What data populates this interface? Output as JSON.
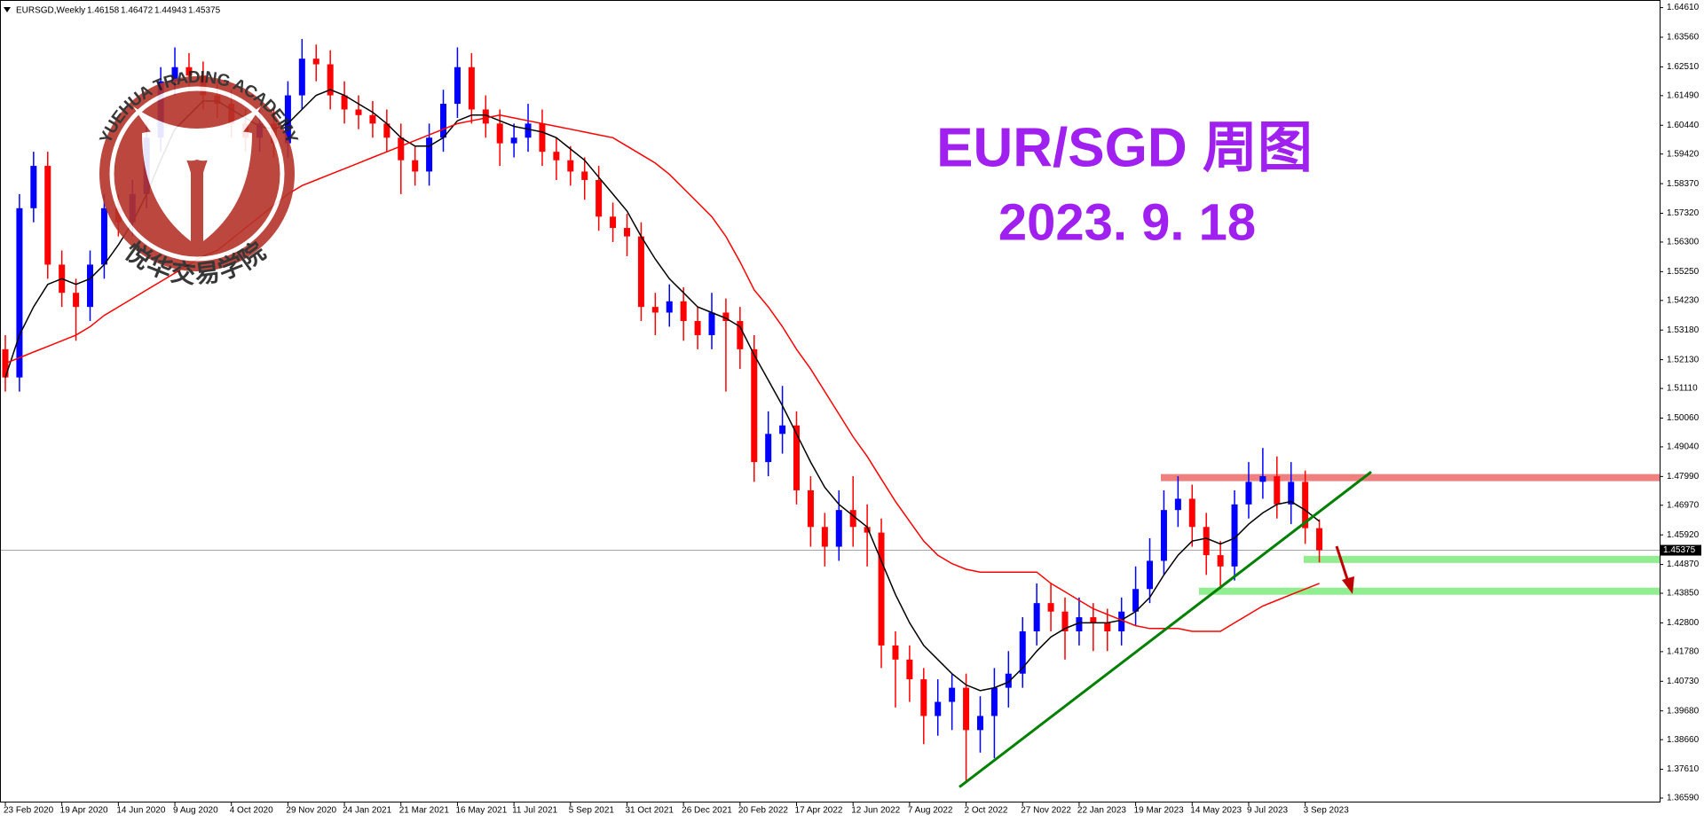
{
  "chart_data": {
    "type": "candlestick",
    "header": "EURSGD,Weekly",
    "title": "EUR/SGD 周图",
    "subtitle": "2023. 9. 18",
    "watermark": {
      "top": "YUEHUA TRADING ACADEMY",
      "bottom": "悦华交易学院"
    },
    "up_color": "#0000ff",
    "down_color": "#ff0000",
    "categories": [
      "23 Feb 2020",
      null,
      null,
      null,
      "19 Apr 2020",
      null,
      null,
      null,
      "14 Jun 2020",
      null,
      null,
      null,
      "9 Aug 2020",
      null,
      null,
      null,
      "4 Oct 2020",
      null,
      null,
      null,
      "29 Nov 2020",
      null,
      null,
      null,
      "24 Jan 2021",
      null,
      null,
      null,
      "21 Mar 2021",
      null,
      null,
      null,
      "16 May 2021",
      null,
      null,
      null,
      "11 Jul 2021",
      null,
      null,
      null,
      "5 Sep 2021",
      null,
      null,
      null,
      "31 Oct 2021",
      null,
      null,
      null,
      "26 Dec 2021",
      null,
      null,
      null,
      "20 Feb 2022",
      null,
      null,
      null,
      "17 Apr 2022",
      null,
      null,
      null,
      "12 Jun 2022",
      null,
      null,
      null,
      "7 Aug 2022",
      null,
      null,
      null,
      "2 Oct 2022",
      null,
      null,
      null,
      "27 Nov 2022",
      null,
      null,
      null,
      "22 Jan 2023",
      null,
      null,
      null,
      "19 Mar 2023",
      null,
      null,
      null,
      "14 May 2023",
      null,
      null,
      null,
      "9 Jul 2023",
      null,
      null,
      null,
      "3 Sep 2023",
      null
    ],
    "open": [
      1.525,
      1.515,
      1.575,
      1.59,
      1.555,
      1.545,
      1.54,
      1.555,
      1.575,
      1.57,
      1.58,
      1.6,
      1.62,
      1.625,
      1.622,
      1.615,
      1.612,
      1.605,
      1.6,
      1.605,
      1.598,
      1.615,
      1.628,
      1.626,
      1.615,
      1.61,
      1.608,
      1.605,
      1.6,
      1.592,
      1.588,
      1.6,
      1.612,
      1.625,
      1.61,
      1.605,
      1.598,
      1.6,
      1.605,
      1.595,
      1.592,
      1.588,
      1.585,
      1.572,
      1.568,
      1.565,
      1.54,
      1.538,
      1.542,
      1.535,
      1.53,
      1.538,
      1.535,
      1.525,
      1.485,
      1.495,
      1.498,
      1.475,
      1.462,
      1.455,
      1.468,
      1.462,
      1.46,
      1.42,
      1.415,
      1.408,
      1.395,
      1.4,
      1.405,
      1.39,
      1.395,
      1.405,
      1.41,
      1.425,
      1.435,
      1.432,
      1.425,
      1.43,
      1.428,
      1.425,
      1.432,
      1.44,
      1.45,
      1.468,
      1.472,
      1.462,
      1.452,
      1.448,
      1.47,
      1.478,
      1.48,
      1.47,
      1.478,
      1.46158
    ],
    "high": [
      1.53,
      1.58,
      1.595,
      1.595,
      1.56,
      1.55,
      1.56,
      1.58,
      1.58,
      1.585,
      1.605,
      1.625,
      1.632,
      1.63,
      1.627,
      1.62,
      1.617,
      1.61,
      1.61,
      1.61,
      1.62,
      1.635,
      1.633,
      1.631,
      1.62,
      1.615,
      1.613,
      1.61,
      1.605,
      1.597,
      1.605,
      1.617,
      1.632,
      1.63,
      1.615,
      1.61,
      1.605,
      1.612,
      1.61,
      1.6,
      1.597,
      1.593,
      1.59,
      1.577,
      1.573,
      1.57,
      1.545,
      1.548,
      1.547,
      1.54,
      1.545,
      1.543,
      1.54,
      1.53,
      1.503,
      1.512,
      1.503,
      1.48,
      1.467,
      1.475,
      1.48,
      1.47,
      1.465,
      1.425,
      1.42,
      1.412,
      1.408,
      1.41,
      1.41,
      1.402,
      1.412,
      1.418,
      1.43,
      1.442,
      1.442,
      1.437,
      1.437,
      1.435,
      1.433,
      1.437,
      1.448,
      1.458,
      1.475,
      1.48,
      1.477,
      1.467,
      1.457,
      1.475,
      1.485,
      1.49,
      1.487,
      1.485,
      1.482,
      1.46472
    ],
    "low": [
      1.51,
      1.51,
      1.57,
      1.55,
      1.54,
      1.528,
      1.535,
      1.55,
      1.565,
      1.565,
      1.575,
      1.595,
      1.615,
      1.617,
      1.61,
      1.607,
      1.6,
      1.595,
      1.595,
      1.593,
      1.593,
      1.61,
      1.62,
      1.61,
      1.605,
      1.603,
      1.6,
      1.595,
      1.58,
      1.583,
      1.583,
      1.595,
      1.607,
      1.605,
      1.6,
      1.59,
      1.593,
      1.595,
      1.59,
      1.585,
      1.583,
      1.578,
      1.567,
      1.563,
      1.558,
      1.535,
      1.53,
      1.533,
      1.528,
      1.525,
      1.525,
      1.51,
      1.518,
      1.478,
      1.48,
      1.488,
      1.47,
      1.455,
      1.448,
      1.45,
      1.455,
      1.448,
      1.412,
      1.398,
      1.4,
      1.385,
      1.388,
      1.39,
      1.372,
      1.382,
      1.38,
      1.398,
      1.405,
      1.42,
      1.425,
      1.415,
      1.42,
      1.418,
      1.418,
      1.42,
      1.427,
      1.435,
      1.445,
      1.462,
      1.455,
      1.445,
      1.44,
      1.443,
      1.465,
      1.472,
      1.465,
      1.463,
      1.456,
      1.44943
    ],
    "close": [
      1.515,
      1.575,
      1.59,
      1.555,
      1.545,
      1.54,
      1.555,
      1.575,
      1.57,
      1.58,
      1.6,
      1.62,
      1.625,
      1.622,
      1.615,
      1.612,
      1.605,
      1.6,
      1.605,
      1.598,
      1.615,
      1.628,
      1.626,
      1.615,
      1.61,
      1.608,
      1.605,
      1.6,
      1.592,
      1.588,
      1.6,
      1.612,
      1.625,
      1.61,
      1.605,
      1.598,
      1.6,
      1.605,
      1.595,
      1.592,
      1.588,
      1.585,
      1.572,
      1.568,
      1.565,
      1.54,
      1.538,
      1.542,
      1.535,
      1.53,
      1.538,
      1.535,
      1.525,
      1.485,
      1.495,
      1.498,
      1.475,
      1.462,
      1.455,
      1.468,
      1.462,
      1.46,
      1.42,
      1.415,
      1.408,
      1.395,
      1.4,
      1.405,
      1.39,
      1.395,
      1.405,
      1.41,
      1.425,
      1.435,
      1.432,
      1.425,
      1.43,
      1.428,
      1.425,
      1.432,
      1.44,
      1.45,
      1.468,
      1.472,
      1.462,
      1.452,
      1.448,
      1.47,
      1.478,
      1.48,
      1.47,
      1.478,
      1.46158,
      1.45375
    ],
    "lines": [
      {
        "color": "#000000",
        "values": [
          1.515,
          1.53,
          1.54,
          1.548,
          1.55,
          1.548,
          1.55,
          1.555,
          1.562,
          1.57,
          1.58,
          1.592,
          1.603,
          1.608,
          1.613,
          1.613,
          1.61,
          1.607,
          1.604,
          1.603,
          1.605,
          1.61,
          1.615,
          1.617,
          1.615,
          1.612,
          1.609,
          1.605,
          1.6,
          1.597,
          1.597,
          1.6,
          1.606,
          1.608,
          1.608,
          1.606,
          1.604,
          1.603,
          1.602,
          1.6,
          1.596,
          1.592,
          1.586,
          1.58,
          1.574,
          1.565,
          1.557,
          1.55,
          1.545,
          1.54,
          1.538,
          1.536,
          1.533,
          1.523,
          1.514,
          1.505,
          1.495,
          1.485,
          1.476,
          1.47,
          1.466,
          1.462,
          1.45,
          1.438,
          1.428,
          1.42,
          1.415,
          1.41,
          1.406,
          1.404,
          1.405,
          1.407,
          1.412,
          1.418,
          1.423,
          1.426,
          1.428,
          1.428,
          1.428,
          1.429,
          1.432,
          1.437,
          1.445,
          1.452,
          1.457,
          1.458,
          1.456,
          1.458,
          1.463,
          1.467,
          1.47,
          1.471,
          1.468,
          1.464
        ]
      },
      {
        "color": "#ff0000",
        "values": [
          1.52,
          1.522,
          1.524,
          1.526,
          1.528,
          1.53,
          1.533,
          1.537,
          1.54,
          1.543,
          1.546,
          1.549,
          1.552,
          1.555,
          1.558,
          1.56,
          1.564,
          1.568,
          1.572,
          1.576,
          1.58,
          1.583,
          1.585,
          1.587,
          1.589,
          1.591,
          1.593,
          1.595,
          1.597,
          1.599,
          1.601,
          1.603,
          1.605,
          1.606,
          1.607,
          1.608,
          1.607,
          1.606,
          1.605,
          1.604,
          1.603,
          1.602,
          1.601,
          1.6,
          1.597,
          1.594,
          1.591,
          1.587,
          1.582,
          1.577,
          1.572,
          1.565,
          1.556,
          1.546,
          1.54,
          1.533,
          1.525,
          1.518,
          1.51,
          1.502,
          1.494,
          1.487,
          1.479,
          1.471,
          1.464,
          1.457,
          1.452,
          1.449,
          1.447,
          1.446,
          1.446,
          1.446,
          1.446,
          1.446,
          1.442,
          1.439,
          1.436,
          1.433,
          1.431,
          1.429,
          1.427,
          1.426,
          1.426,
          1.426,
          1.425,
          1.425,
          1.425,
          1.428,
          1.431,
          1.434,
          1.436,
          1.438,
          1.44,
          1.442
        ]
      }
    ],
    "levels": [
      {
        "value": 1.4795,
        "color": "#f08080"
      },
      {
        "value": 1.4505,
        "color": "#90ee90"
      },
      {
        "value": 1.4392,
        "color": "#90ee90"
      }
    ],
    "trendline": {
      "y": [
        1.3698,
        1.4815
      ],
      "color": "#008000"
    },
    "ylim": [
      1.3659,
      1.6461
    ],
    "yticks": [
      {
        "value": 1.6461,
        "label": "1.64610"
      },
      {
        "value": 1.6356,
        "label": "1.63560"
      },
      {
        "value": 1.6251,
        "label": "1.62510"
      },
      {
        "value": 1.6149,
        "label": "1.61490"
      },
      {
        "value": 1.6044,
        "label": "1.60440"
      },
      {
        "value": 1.5942,
        "label": "1.59420"
      },
      {
        "value": 1.5837,
        "label": "1.58370"
      },
      {
        "value": 1.5732,
        "label": "1.57320"
      },
      {
        "value": 1.563,
        "label": "1.56300"
      },
      {
        "value": 1.5525,
        "label": "1.55250"
      },
      {
        "value": 1.5423,
        "label": "1.54230"
      },
      {
        "value": 1.5318,
        "label": "1.53180"
      },
      {
        "value": 1.5213,
        "label": "1.52130"
      },
      {
        "value": 1.5111,
        "label": "1.51110"
      },
      {
        "value": 1.5006,
        "label": "1.50060"
      },
      {
        "value": 1.4904,
        "label": "1.49040"
      },
      {
        "value": 1.4799,
        "label": "1.47990"
      },
      {
        "value": 1.4697,
        "label": "1.46970"
      },
      {
        "value": 1.4592,
        "label": "1.45920"
      },
      {
        "value": 1.4487,
        "label": "1.44870"
      },
      {
        "value": 1.4385,
        "label": "1.43850"
      },
      {
        "value": 1.428,
        "label": "1.42800"
      },
      {
        "value": 1.4178,
        "label": "1.41780"
      },
      {
        "value": 1.4073,
        "label": "1.40730"
      },
      {
        "value": 1.3968,
        "label": "1.39680"
      },
      {
        "value": 1.3866,
        "label": "1.38660"
      },
      {
        "value": 1.3761,
        "label": "1.37610"
      },
      {
        "value": 1.3659,
        "label": "1.36590"
      }
    ]
  }
}
